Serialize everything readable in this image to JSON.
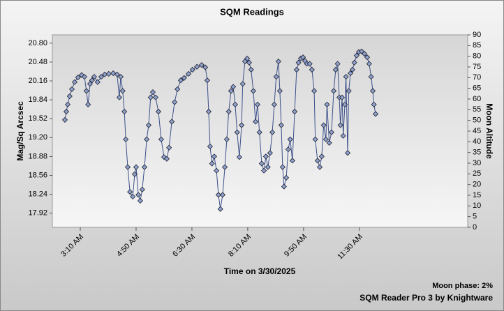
{
  "chart_data": {
    "type": "line",
    "title": "SQM Readings",
    "xlabel": "Time on 3/30/2025",
    "ylabel": "Mag/Sq Arcsec",
    "y2label": "Moon Altitude",
    "xlim": [
      140,
      884
    ],
    "xticks": [
      {
        "value": 190,
        "label": "3:10 AM"
      },
      {
        "value": 290,
        "label": "4:50 AM"
      },
      {
        "value": 390,
        "label": "6:30 AM"
      },
      {
        "value": 490,
        "label": "8:10 AM"
      },
      {
        "value": 590,
        "label": "9:50 AM"
      },
      {
        "value": 690,
        "label": "11:30 AM"
      }
    ],
    "ylim": [
      17.68,
      20.94
    ],
    "yticks": [
      17.92,
      18.24,
      18.56,
      18.88,
      {
        "value": 19.2,
        "label": "19.20"
      },
      19.52,
      19.84,
      20.16,
      20.48,
      {
        "value": 20.8,
        "label": "20.80"
      }
    ],
    "y2lim": [
      0,
      90
    ],
    "y2ticks": [
      0,
      5,
      10,
      15,
      20,
      25,
      30,
      35,
      40,
      45,
      50,
      55,
      60,
      65,
      70,
      75,
      80,
      85,
      90
    ],
    "x": [
      162.5,
      165,
      167.5,
      171,
      175,
      180,
      186,
      192.5,
      197.5,
      201,
      204,
      207.5,
      211,
      215,
      221,
      227.5,
      234,
      241,
      249,
      256,
      260,
      262.5,
      266,
      269,
      271.5,
      275,
      279,
      284,
      287.5,
      290,
      294,
      297.5,
      301,
      305,
      309,
      312.5,
      316,
      320,
      325,
      330,
      335,
      340,
      345,
      349,
      354,
      359,
      364,
      370,
      376,
      384,
      391,
      399,
      407.5,
      414,
      417.5,
      420,
      422.5,
      426,
      430,
      434,
      437.5,
      441,
      445,
      449,
      452.5,
      456,
      460,
      464,
      467.5,
      471,
      475,
      479,
      481,
      485,
      489,
      492.5,
      496,
      500,
      504,
      507.5,
      511,
      515,
      519,
      522.5,
      526,
      530,
      534,
      537.5,
      541,
      545,
      547.5,
      550,
      552.5,
      555,
      559,
      562.5,
      566,
      570,
      574,
      577.5,
      581,
      585,
      589,
      592.5,
      596,
      601,
      605,
      609,
      611,
      615,
      619,
      622.5,
      626,
      630,
      632,
      636,
      640,
      644,
      647.5,
      651,
      654,
      656,
      659,
      661,
      664,
      666,
      669,
      671,
      674,
      677.5,
      681,
      685,
      689,
      694,
      699,
      704,
      707.5,
      711,
      714,
      716,
      719
    ],
    "series": [
      {
        "name": "Mag/Sq Arcsec",
        "color": "#3b4f8a",
        "values": [
          19.5,
          19.64,
          19.76,
          19.9,
          20.02,
          20.14,
          20.22,
          20.26,
          20.23,
          19.99,
          19.76,
          20.11,
          20.17,
          20.23,
          20.14,
          20.23,
          20.27,
          20.28,
          20.29,
          20.27,
          19.88,
          20.23,
          19.99,
          19.64,
          19.17,
          18.7,
          18.28,
          18.2,
          18.58,
          18.7,
          18.23,
          18.13,
          18.32,
          18.7,
          19.17,
          19.41,
          19.88,
          19.97,
          19.88,
          19.64,
          19.17,
          18.87,
          18.84,
          19.03,
          19.47,
          19.8,
          20.02,
          20.17,
          20.21,
          20.28,
          20.35,
          20.4,
          20.43,
          20.39,
          20.17,
          19.64,
          19.05,
          18.76,
          18.88,
          18.64,
          18.23,
          17.99,
          18.23,
          18.7,
          19.17,
          19.64,
          19.99,
          20.06,
          19.76,
          19.29,
          18.87,
          19.41,
          20.11,
          20.49,
          20.54,
          20.47,
          20.35,
          19.99,
          19.47,
          19.76,
          19.29,
          18.76,
          18.64,
          18.88,
          18.7,
          18.94,
          19.29,
          19.76,
          20.23,
          20.49,
          19.99,
          19.41,
          18.7,
          18.37,
          18.52,
          19.0,
          19.17,
          18.81,
          19.64,
          20.35,
          20.47,
          20.54,
          20.56,
          20.5,
          20.45,
          20.45,
          20.35,
          19.99,
          19.17,
          18.81,
          18.7,
          18.88,
          19.41,
          19.17,
          19.76,
          19.11,
          19.29,
          19.99,
          20.35,
          20.45,
          19.88,
          19.41,
          19.88,
          19.23,
          19.76,
          20.23,
          18.94,
          19.99,
          20.29,
          20.35,
          20.47,
          20.59,
          20.65,
          20.66,
          20.62,
          20.56,
          20.45,
          20.23,
          19.99,
          19.76,
          19.6
        ]
      }
    ]
  },
  "footer": {
    "moon_phase": "Moon phase: 2%",
    "credit": "SQM Reader Pro 3 by Knightware"
  }
}
